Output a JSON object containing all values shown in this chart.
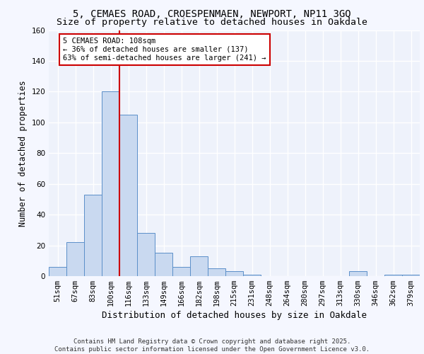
{
  "title1": "5, CEMAES ROAD, CROESPENMAEN, NEWPORT, NP11 3GQ",
  "title2": "Size of property relative to detached houses in Oakdale",
  "xlabel": "Distribution of detached houses by size in Oakdale",
  "ylabel": "Number of detached properties",
  "categories": [
    "51sqm",
    "67sqm",
    "83sqm",
    "100sqm",
    "116sqm",
    "133sqm",
    "149sqm",
    "166sqm",
    "182sqm",
    "198sqm",
    "215sqm",
    "231sqm",
    "248sqm",
    "264sqm",
    "280sqm",
    "297sqm",
    "313sqm",
    "330sqm",
    "346sqm",
    "362sqm",
    "379sqm"
  ],
  "values": [
    6,
    22,
    53,
    120,
    105,
    28,
    15,
    6,
    13,
    5,
    3,
    1,
    0,
    0,
    0,
    0,
    0,
    3,
    0,
    1,
    1
  ],
  "bar_color": "#c9d9f0",
  "bar_edge_color": "#5b8fc9",
  "background_color": "#eef2fb",
  "grid_color": "#ffffff",
  "fig_background_color": "#f5f7ff",
  "red_line_x": 3.5,
  "annotation_text": "5 CEMAES ROAD: 108sqm\n← 36% of detached houses are smaller (137)\n63% of semi-detached houses are larger (241) →",
  "annotation_box_color": "#ffffff",
  "annotation_box_edge_color": "#cc0000",
  "ylim": [
    0,
    160
  ],
  "yticks": [
    0,
    20,
    40,
    60,
    80,
    100,
    120,
    140,
    160
  ],
  "footer": "Contains HM Land Registry data © Crown copyright and database right 2025.\nContains public sector information licensed under the Open Government Licence v3.0.",
  "title_fontsize": 10,
  "subtitle_fontsize": 9.5,
  "axis_label_fontsize": 8.5,
  "tick_fontsize": 7.5,
  "annotation_fontsize": 7.5,
  "footer_fontsize": 6.5
}
